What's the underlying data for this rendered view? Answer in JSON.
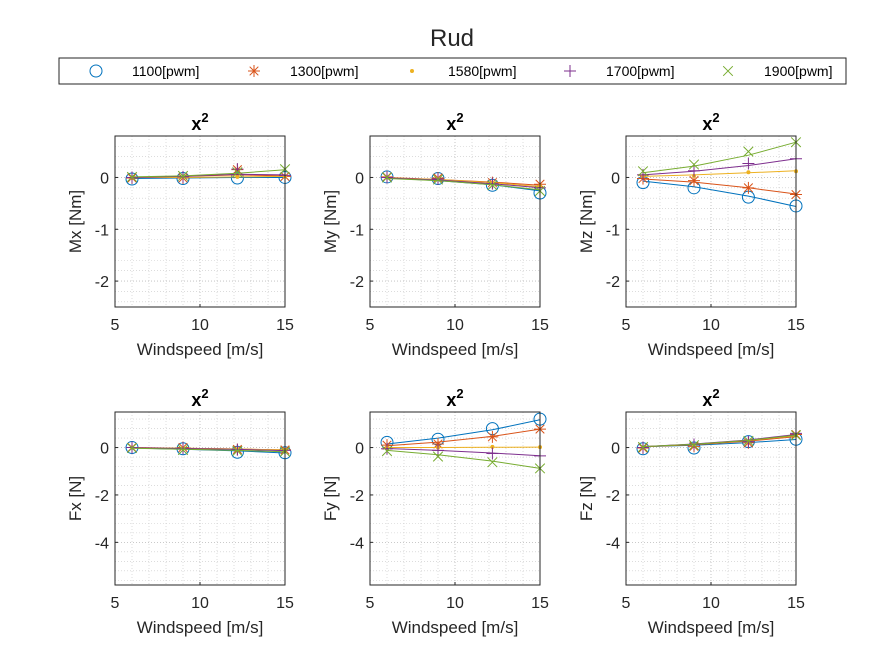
{
  "figure": {
    "title": "Rud"
  },
  "legend": {
    "placement": "top",
    "entries": [
      {
        "label": "1100[pwm]",
        "color": "#0072BD",
        "marker": "circle"
      },
      {
        "label": "1300[pwm]",
        "color": "#D95319",
        "marker": "asterisk"
      },
      {
        "label": "1580[pwm]",
        "color": "#EDB120",
        "marker": "point"
      },
      {
        "label": "1700[pwm]",
        "color": "#7E2F8E",
        "marker": "plus"
      },
      {
        "label": "1900[pwm]",
        "color": "#77AC30",
        "marker": "x-cross"
      }
    ]
  },
  "chart_data": [
    {
      "type": "line",
      "title": "x",
      "title_superscript": "2",
      "xlabel": "Windspeed [m/s]",
      "ylabel": "Mx [Nm]",
      "xlim": [
        5,
        15
      ],
      "ylim": [
        -2.5,
        0.8
      ],
      "xticks": [
        5,
        10,
        15
      ],
      "yticks": [
        -2,
        -1,
        0
      ],
      "x": [
        6,
        9,
        12.2,
        15
      ],
      "series": [
        {
          "name": "1100[pwm]",
          "points": [
            -0.03,
            -0.02,
            -0.01,
            0.0
          ],
          "fit": [
            -0.02,
            -0.01,
            0.0,
            0.0
          ]
        },
        {
          "name": "1300[pwm]",
          "points": [
            -0.01,
            -0.01,
            0.15,
            0.02
          ],
          "fit": [
            0.0,
            0.02,
            0.05,
            0.03
          ]
        },
        {
          "name": "1580[pwm]",
          "points": [
            -0.01,
            0.0,
            0.01,
            0.02
          ],
          "fit": [
            0.0,
            0.0,
            0.01,
            0.02
          ]
        },
        {
          "name": "1700[pwm]",
          "points": [
            0.0,
            0.01,
            0.16,
            0.04
          ],
          "fit": [
            0.0,
            0.02,
            0.06,
            0.05
          ]
        },
        {
          "name": "1900[pwm]",
          "points": [
            0.01,
            0.03,
            0.1,
            0.16
          ],
          "fit": [
            0.01,
            0.03,
            0.08,
            0.15
          ]
        }
      ]
    },
    {
      "type": "line",
      "title": "x",
      "title_superscript": "2",
      "xlabel": "Windspeed [m/s]",
      "ylabel": "My [Nm]",
      "xlim": [
        5,
        15
      ],
      "ylim": [
        -2.5,
        0.8
      ],
      "xticks": [
        5,
        10,
        15
      ],
      "yticks": [
        -2,
        -1,
        0
      ],
      "x": [
        6,
        9,
        12.2,
        15
      ],
      "series": [
        {
          "name": "1100[pwm]",
          "points": [
            0.01,
            -0.02,
            -0.15,
            -0.3
          ],
          "fit": [
            -0.01,
            -0.06,
            -0.14,
            -0.26
          ]
        },
        {
          "name": "1300[pwm]",
          "points": [
            0.01,
            -0.01,
            -0.1,
            -0.13
          ],
          "fit": [
            0.0,
            -0.04,
            -0.09,
            -0.15
          ]
        },
        {
          "name": "1580[pwm]",
          "points": [
            0.0,
            -0.02,
            -0.1,
            -0.17
          ],
          "fit": [
            -0.01,
            -0.04,
            -0.1,
            -0.18
          ]
        },
        {
          "name": "1700[pwm]",
          "points": [
            0.0,
            -0.03,
            -0.12,
            -0.2
          ],
          "fit": [
            -0.01,
            -0.05,
            -0.12,
            -0.2
          ]
        },
        {
          "name": "1900[pwm]",
          "points": [
            0.0,
            -0.04,
            -0.15,
            -0.26
          ],
          "fit": [
            -0.02,
            -0.06,
            -0.14,
            -0.24
          ]
        }
      ]
    },
    {
      "type": "line",
      "title": "x",
      "title_superscript": "2",
      "xlabel": "Windspeed [m/s]",
      "ylabel": "Mz [Nm]",
      "xlim": [
        5,
        15
      ],
      "ylim": [
        -2.5,
        0.8
      ],
      "xticks": [
        5,
        10,
        15
      ],
      "yticks": [
        -2,
        -1,
        0
      ],
      "x": [
        6,
        9,
        12.2,
        15
      ],
      "series": [
        {
          "name": "1100[pwm]",
          "points": [
            -0.1,
            -0.2,
            -0.38,
            -0.55
          ],
          "fit": [
            -0.07,
            -0.18,
            -0.36,
            -0.56
          ]
        },
        {
          "name": "1300[pwm]",
          "points": [
            -0.02,
            -0.06,
            -0.2,
            -0.33
          ],
          "fit": [
            -0.03,
            -0.09,
            -0.2,
            -0.32
          ]
        },
        {
          "name": "1580[pwm]",
          "points": [
            0.03,
            0.03,
            0.1,
            0.12
          ],
          "fit": [
            0.02,
            0.05,
            0.09,
            0.13
          ]
        },
        {
          "name": "1700[pwm]",
          "points": [
            0.05,
            0.13,
            0.27,
            0.36
          ],
          "fit": [
            0.05,
            0.12,
            0.23,
            0.36
          ]
        },
        {
          "name": "1900[pwm]",
          "points": [
            0.12,
            0.25,
            0.5,
            0.68
          ],
          "fit": [
            0.09,
            0.22,
            0.43,
            0.68
          ]
        }
      ]
    },
    {
      "type": "line",
      "title": "x",
      "title_superscript": "2",
      "xlabel": "Windspeed [m/s]",
      "ylabel": "Fx [N]",
      "xlim": [
        5,
        15
      ],
      "ylim": [
        -5.8,
        1.5
      ],
      "xticks": [
        5,
        10,
        15
      ],
      "yticks": [
        -4,
        -2,
        0
      ],
      "x": [
        6,
        9,
        12.2,
        15
      ],
      "series": [
        {
          "name": "1100[pwm]",
          "points": [
            0.0,
            -0.05,
            -0.2,
            -0.22
          ],
          "fit": [
            -0.02,
            -0.07,
            -0.14,
            -0.23
          ]
        },
        {
          "name": "1300[pwm]",
          "points": [
            0.0,
            0.0,
            -0.08,
            -0.1
          ],
          "fit": [
            0.0,
            -0.03,
            -0.06,
            -0.1
          ]
        },
        {
          "name": "1580[pwm]",
          "points": [
            0.0,
            -0.02,
            -0.07,
            -0.1
          ],
          "fit": [
            -0.01,
            -0.03,
            -0.06,
            -0.1
          ]
        },
        {
          "name": "1700[pwm]",
          "points": [
            0.0,
            -0.03,
            -0.09,
            -0.12
          ],
          "fit": [
            -0.01,
            -0.04,
            -0.08,
            -0.13
          ]
        },
        {
          "name": "1900[pwm]",
          "points": [
            -0.02,
            -0.1,
            -0.14,
            -0.17
          ],
          "fit": [
            -0.03,
            -0.07,
            -0.12,
            -0.18
          ]
        }
      ]
    },
    {
      "type": "line",
      "title": "x",
      "title_superscript": "2",
      "xlabel": "Windspeed [m/s]",
      "ylabel": "Fy [N]",
      "xlim": [
        5,
        15
      ],
      "ylim": [
        -5.8,
        1.5
      ],
      "xticks": [
        5,
        10,
        15
      ],
      "yticks": [
        -4,
        -2,
        0
      ],
      "x": [
        6,
        9,
        12.2,
        15
      ],
      "series": [
        {
          "name": "1100[pwm]",
          "points": [
            0.22,
            0.35,
            0.8,
            1.2
          ],
          "fit": [
            0.15,
            0.4,
            0.75,
            1.17
          ]
        },
        {
          "name": "1300[pwm]",
          "points": [
            0.1,
            0.15,
            0.45,
            0.78
          ],
          "fit": [
            0.08,
            0.23,
            0.47,
            0.78
          ]
        },
        {
          "name": "1580[pwm]",
          "points": [
            0.0,
            0.0,
            0.03,
            0.02
          ],
          "fit": [
            0.0,
            0.0,
            0.01,
            0.02
          ]
        },
        {
          "name": "1700[pwm]",
          "points": [
            -0.05,
            -0.12,
            -0.25,
            -0.35
          ],
          "fit": [
            -0.04,
            -0.12,
            -0.23,
            -0.35
          ]
        },
        {
          "name": "1900[pwm]",
          "points": [
            -0.15,
            -0.38,
            -0.62,
            -0.88
          ],
          "fit": [
            -0.12,
            -0.3,
            -0.57,
            -0.88
          ]
        }
      ]
    },
    {
      "type": "line",
      "title": "x",
      "title_superscript": "2",
      "xlabel": "Windspeed [m/s]",
      "ylabel": "Fz [N]",
      "xlim": [
        5,
        15
      ],
      "ylim": [
        -5.8,
        1.5
      ],
      "xticks": [
        5,
        10,
        15
      ],
      "yticks": [
        -4,
        -2,
        0
      ],
      "x": [
        6,
        9,
        12.2,
        15
      ],
      "series": [
        {
          "name": "1100[pwm]",
          "points": [
            -0.05,
            -0.02,
            0.25,
            0.35
          ],
          "fit": [
            0.03,
            0.1,
            0.21,
            0.34
          ]
        },
        {
          "name": "1300[pwm]",
          "points": [
            -0.02,
            0.05,
            0.2,
            0.55
          ],
          "fit": [
            0.03,
            0.12,
            0.27,
            0.46
          ]
        },
        {
          "name": "1580[pwm]",
          "points": [
            0.0,
            0.1,
            0.25,
            0.52
          ],
          "fit": [
            0.04,
            0.14,
            0.3,
            0.5
          ]
        },
        {
          "name": "1700[pwm]",
          "points": [
            0.0,
            0.13,
            0.25,
            0.6
          ],
          "fit": [
            0.04,
            0.15,
            0.32,
            0.55
          ]
        },
        {
          "name": "1900[pwm]",
          "points": [
            0.02,
            0.1,
            0.28,
            0.52
          ],
          "fit": [
            0.04,
            0.14,
            0.3,
            0.52
          ]
        }
      ]
    }
  ]
}
